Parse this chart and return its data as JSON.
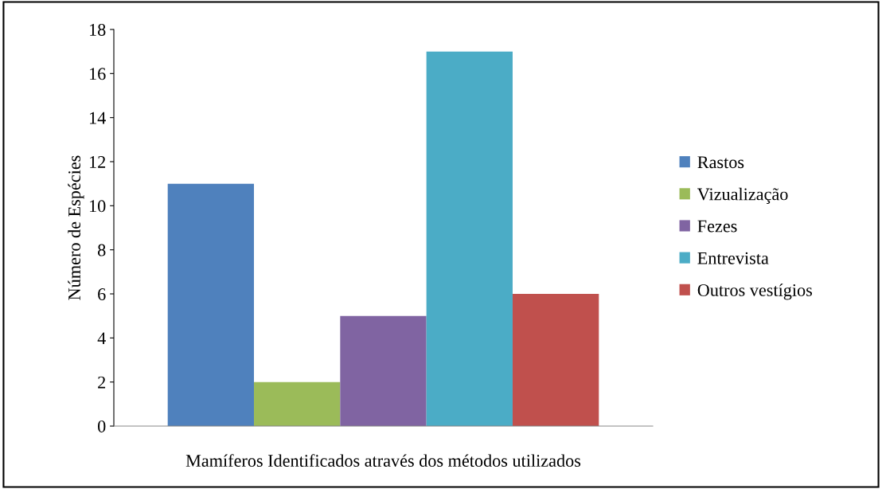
{
  "chart_data": {
    "type": "bar",
    "xlabel": "Mamíferos Identificados através dos métodos utilizados",
    "ylabel": "Número de Espécies",
    "categories": [
      null
    ],
    "series": [
      {
        "name": "Rastos",
        "color": "#4f81bd",
        "values": [
          11
        ]
      },
      {
        "name": "Vizualização",
        "color": "#9bbb59",
        "values": [
          2
        ]
      },
      {
        "name": "Fezes",
        "color": "#8064a2",
        "values": [
          5
        ]
      },
      {
        "name": "Entrevista",
        "color": "#4bacc6",
        "values": [
          17
        ]
      },
      {
        "name": "Outros vestígios",
        "color": "#c0504d",
        "values": [
          6
        ]
      }
    ],
    "ylim": [
      0,
      18
    ],
    "yticks": [
      0,
      2,
      4,
      6,
      8,
      10,
      12,
      14,
      16,
      18
    ],
    "grid": false,
    "legend": "right"
  }
}
